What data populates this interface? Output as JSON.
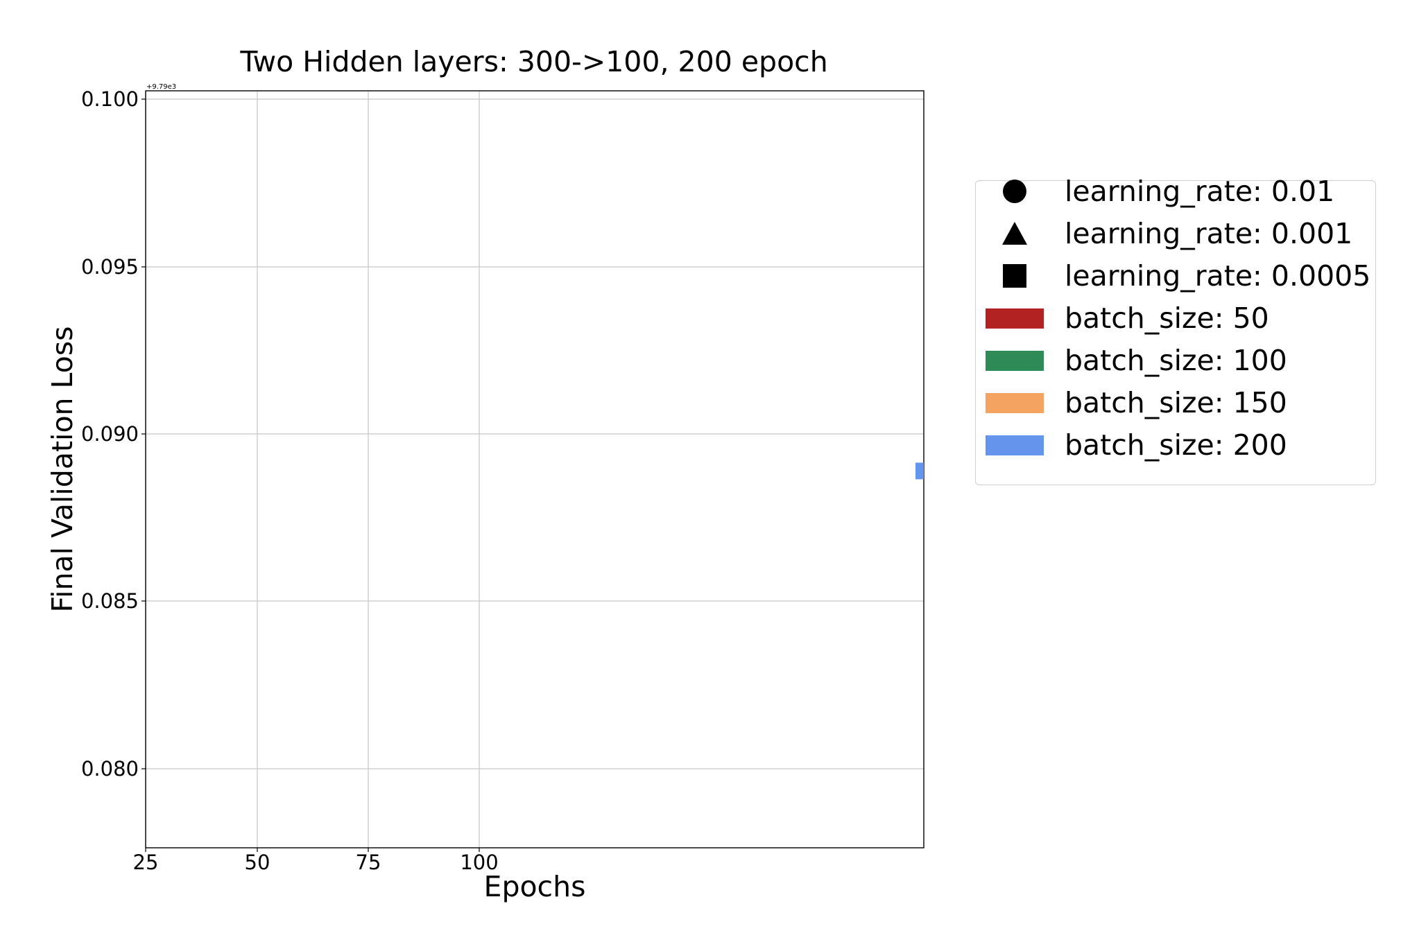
{
  "chart_data": {
    "type": "scatter",
    "title": "Two Hidden layers: 300->100, 200 epoch",
    "xlabel": "Epochs",
    "ylabel": "Final Validation Loss",
    "y_offset_text": "+9.79e3",
    "x_ticks": [
      "25",
      "50",
      "75",
      "100"
    ],
    "y_ticks": [
      "0.080",
      "0.085",
      "0.090",
      "0.095",
      "0.100"
    ],
    "xlim": [
      25,
      200
    ],
    "ylim": [
      0.0776,
      0.1003
    ],
    "grid": true,
    "legend_placement": "outside right",
    "points": [
      {
        "x": 200,
        "y": 0.0889,
        "marker": "square",
        "learning_rate": "0.0005",
        "batch_size": "200"
      }
    ],
    "legend": {
      "markers": [
        {
          "shape": "circle",
          "label": "learning_rate: 0.01"
        },
        {
          "shape": "triangle",
          "label": "learning_rate: 0.001"
        },
        {
          "shape": "square",
          "label": "learning_rate: 0.0005"
        }
      ],
      "colors": [
        {
          "color": "#b22222",
          "label": "batch_size: 50"
        },
        {
          "color": "#2e8b57",
          "label": "batch_size: 100"
        },
        {
          "color": "#f4a460",
          "label": "batch_size: 150"
        },
        {
          "color": "#6495ed",
          "label": "batch_size: 200"
        }
      ]
    }
  }
}
